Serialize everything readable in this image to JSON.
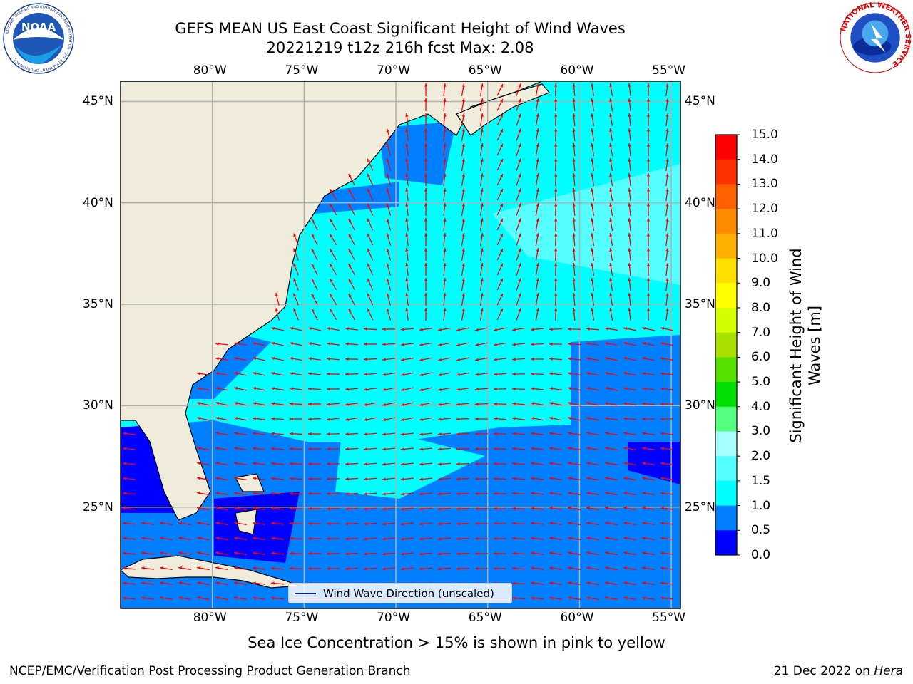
{
  "title": {
    "line1": "GEFS MEAN US East Coast Significant Height of Wind Waves",
    "line2": "20221219 t12z 216h fcst   Max: 2.08"
  },
  "logos": {
    "left": "noaa-logo",
    "left_text": "NOAA",
    "left_ring": "NATIONAL OCEANIC AND ATMOSPHERIC ADMINISTRATION · U.S. DEPARTMENT OF COMMERCE",
    "right": "nws-logo",
    "right_ring": "NATIONAL WEATHER SERVICE"
  },
  "map": {
    "lon_labels_top": [
      "80°W",
      "75°W",
      "70°W",
      "65°W",
      "60°W",
      "55°W"
    ],
    "lon_labels_bottom": [
      "80°W",
      "75°W",
      "70°W",
      "65°W",
      "60°W",
      "55°W"
    ],
    "lat_labels_left": [
      "45°N",
      "40°N",
      "35°N",
      "30°N",
      "25°N"
    ],
    "lat_labels_right": [
      "45°N",
      "40°N",
      "35°N",
      "30°N",
      "25°N"
    ],
    "lon_range": [
      -85,
      -54.5
    ],
    "lat_range": [
      20,
      46
    ],
    "land_color": "#efecdc",
    "grid": true,
    "arrow_color": "#ff0000"
  },
  "legend": {
    "label": "Wind Wave Direction (unscaled)",
    "placement": "lower-center"
  },
  "colorbar": {
    "label": "Significant Height of Wind Waves [m]",
    "label_line1": "Significant Height of Wind",
    "label_line2": "Waves [m]",
    "ticks": [
      "15.0",
      "14.0",
      "13.0",
      "12.0",
      "11.0",
      "10.0",
      "9.0",
      "8.0",
      "7.0",
      "6.0",
      "5.0",
      "4.0",
      "3.0",
      "2.0",
      "1.5",
      "1.0",
      "0.5",
      "0.0"
    ],
    "colors": [
      "#0000ff",
      "#0080ff",
      "#00ffff",
      "#55ffff",
      "#aaffff",
      "#55ff80",
      "#00e000",
      "#55e000",
      "#aae000",
      "#d4ff00",
      "#ffff00",
      "#ffe000",
      "#ffb000",
      "#ff8c00",
      "#ff6000",
      "#ff3000",
      "#ff0000"
    ]
  },
  "note": "Sea Ice Concentration > 15% is shown in pink to yellow",
  "footer": {
    "left": "NCEP/EMC/Verification Post Processing Product Generation Branch",
    "right_prefix": "21 Dec 2022 on ",
    "right_italic": "Hera"
  }
}
